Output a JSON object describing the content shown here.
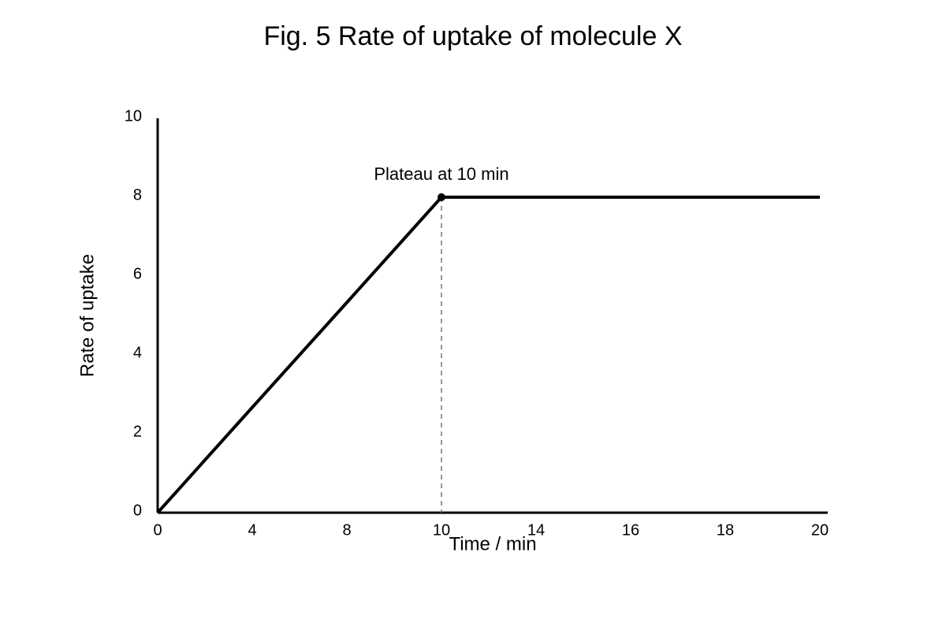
{
  "chart_data": {
    "type": "line",
    "title": "Fig. 5 Rate of uptake of molecule X",
    "x_label": "Time / min",
    "y_label": "Rate of uptake",
    "annotation": "Plateau at 10 min",
    "categories": [
      "0",
      "4",
      "8",
      "10",
      "14",
      "16",
      "18",
      "20"
    ],
    "values": [
      0,
      2.67,
      5.33,
      8,
      8,
      8,
      8,
      8
    ],
    "color": "#000000",
    "ylim": [
      0,
      10
    ],
    "yticks": [
      0,
      2,
      4,
      6,
      8,
      10
    ],
    "grid": false
  }
}
